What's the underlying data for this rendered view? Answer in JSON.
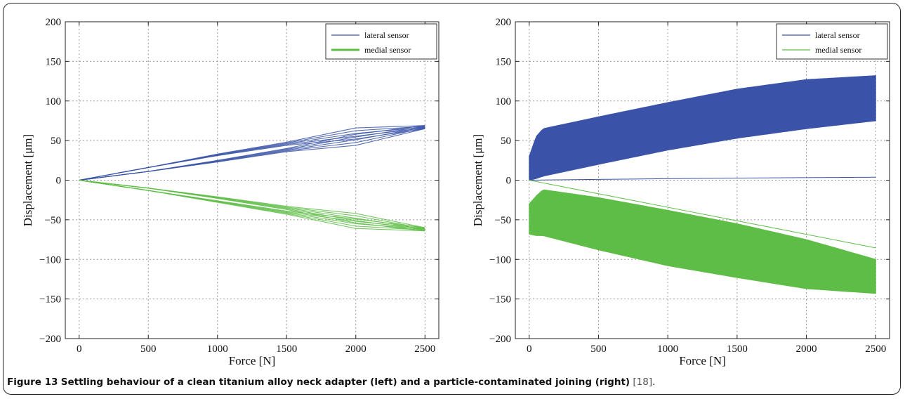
{
  "figure": {
    "label": "Figure 13",
    "caption": "Settling behaviour of a clean titanium alloy neck adapter (left) and a particle-contaminated joining (right)",
    "reference": "[18]",
    "caption_end": "."
  },
  "colors": {
    "lateral": "#3a53a8",
    "medial": "#5ebd46",
    "grid": "#9a9a9a"
  },
  "chart_data": [
    {
      "type": "line",
      "panel": "left",
      "xlabel": "Force [N]",
      "ylabel": "Displacement [μm]",
      "xlim": [
        -100,
        2600
      ],
      "ylim": [
        -200,
        200
      ],
      "xticks": [
        0,
        500,
        1000,
        1500,
        2000,
        2500
      ],
      "yticks": [
        -200,
        -150,
        -100,
        -50,
        0,
        50,
        100,
        150,
        200
      ],
      "grid": true,
      "legend_position": "top-right",
      "series": [
        {
          "name": "lateral sensor",
          "color": "#3a53a8",
          "style": "hysteresis-loop",
          "x": [
            0,
            500,
            1000,
            1500,
            2000,
            2500
          ],
          "y_upper": [
            0,
            16,
            32,
            46,
            59,
            67
          ],
          "y_lower": [
            0,
            11,
            24,
            38,
            51,
            67
          ],
          "band_width": [
            0,
            0,
            1,
            2,
            7,
            2
          ]
        },
        {
          "name": "medial sensor",
          "color": "#5ebd46",
          "style": "hysteresis-loop",
          "x": [
            0,
            500,
            1000,
            1500,
            2000,
            2500
          ],
          "y_upper": [
            0,
            -10,
            -22,
            -35,
            -48,
            -62
          ],
          "y_lower": [
            0,
            -13,
            -27,
            -41,
            -55,
            -62
          ],
          "band_width": [
            0,
            0,
            1,
            2,
            6,
            2
          ]
        }
      ]
    },
    {
      "type": "area",
      "panel": "right",
      "xlabel": "Force [N]",
      "ylabel": "Displacement [μm]",
      "xlim": [
        -100,
        2600
      ],
      "ylim": [
        -200,
        200
      ],
      "xticks": [
        0,
        500,
        1000,
        1500,
        2000,
        2500
      ],
      "yticks": [
        -200,
        -150,
        -100,
        -50,
        0,
        50,
        100,
        150,
        200
      ],
      "grid": true,
      "legend_position": "top-right",
      "series": [
        {
          "name": "lateral sensor",
          "color": "#3a53a8",
          "x": [
            0,
            50,
            100,
            500,
            1000,
            1500,
            2000,
            2500
          ],
          "y_upper": [
            30,
            55,
            65,
            80,
            98,
            115,
            127,
            132
          ],
          "y_lower": [
            0,
            2,
            5,
            20,
            38,
            53,
            65,
            75
          ]
        },
        {
          "name": "medial sensor",
          "color": "#5ebd46",
          "x": [
            0,
            50,
            100,
            500,
            1000,
            1500,
            2000,
            2500
          ],
          "y_upper": [
            -30,
            -20,
            -12,
            -22,
            -38,
            -55,
            -75,
            -100
          ],
          "y_lower": [
            -68,
            -70,
            -70,
            -88,
            -108,
            -123,
            -137,
            -143
          ]
        }
      ]
    }
  ]
}
